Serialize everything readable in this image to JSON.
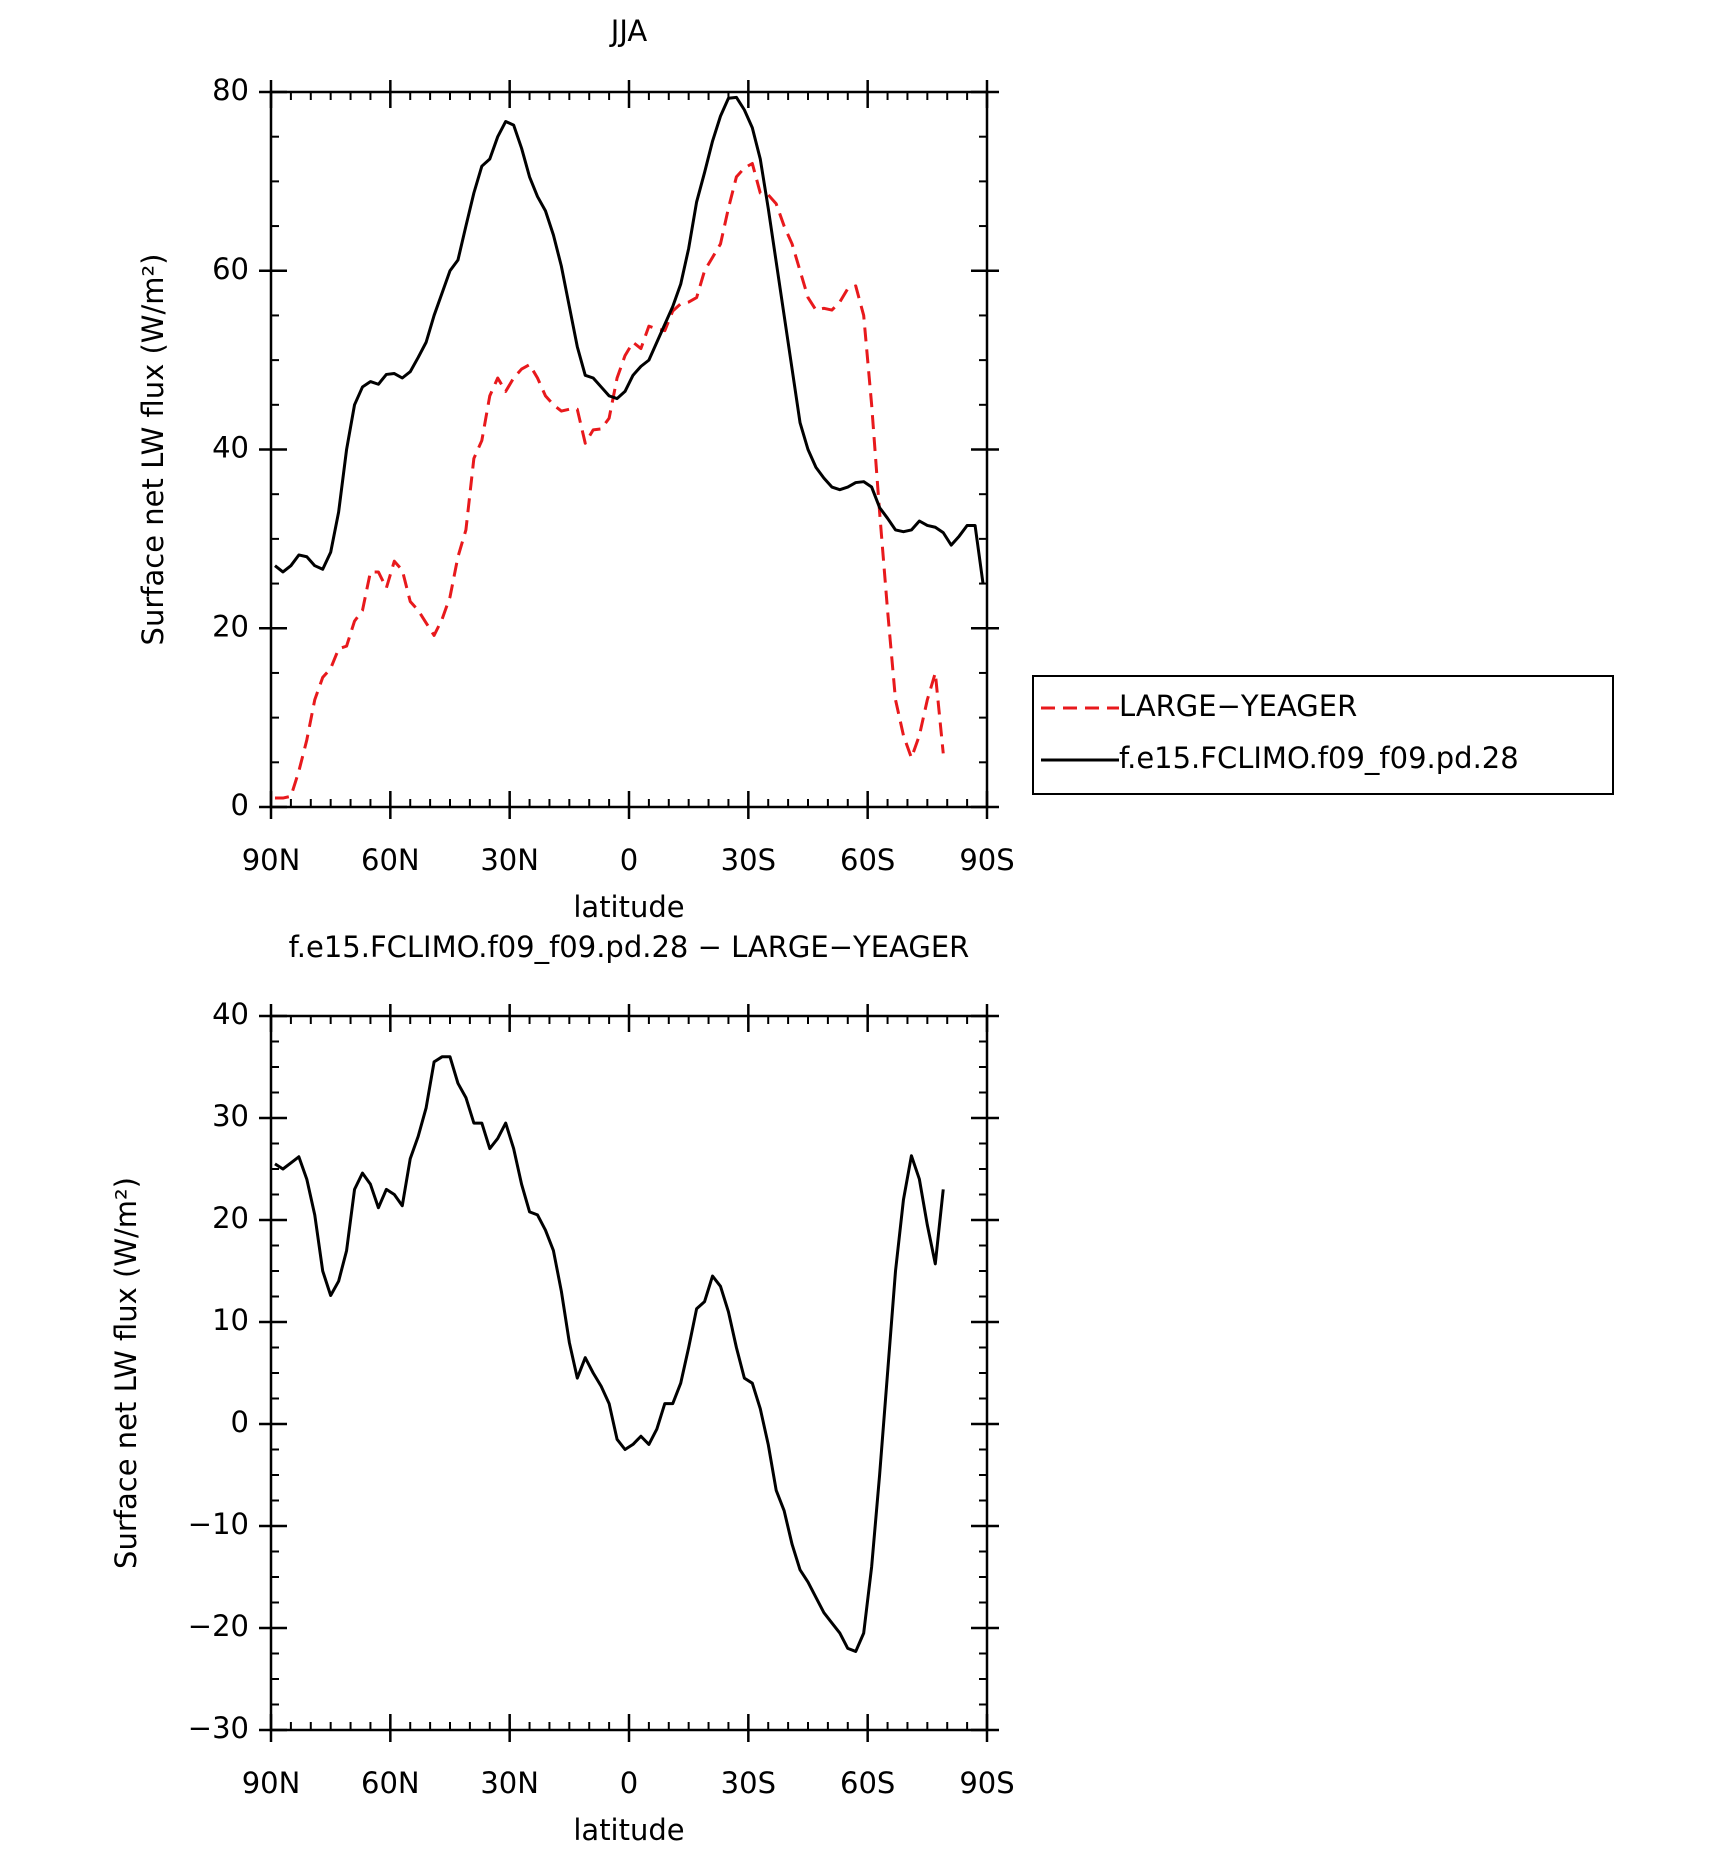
{
  "chart_data": [
    {
      "type": "line",
      "title": "JJA",
      "xlabel": "latitude",
      "ylabel": "Surface net LW flux (W/m²)",
      "x": [
        89,
        87,
        85,
        83,
        81,
        79,
        77,
        75,
        73,
        71,
        69,
        67,
        65,
        63,
        61,
        59,
        57,
        55,
        53,
        51,
        49,
        47,
        45,
        43,
        41,
        39,
        37,
        35,
        33,
        31,
        29,
        27,
        25,
        23,
        21,
        19,
        17,
        15,
        13,
        11,
        9,
        7,
        5,
        3,
        1,
        -1,
        -3,
        -5,
        -7,
        -9,
        -11,
        -13,
        -15,
        -17,
        -19,
        -21,
        -23,
        -25,
        -27,
        -29,
        -31,
        -33,
        -35,
        -37,
        -39,
        -41,
        -43,
        -45,
        -47,
        -49,
        -51,
        -53,
        -55,
        -57,
        -59,
        -61,
        -63,
        -65,
        -67,
        -69,
        -71,
        -73,
        -75,
        -77,
        -79,
        -81,
        -83,
        -85,
        -87,
        -89
      ],
      "xlim": [
        90,
        -90
      ],
      "xticks": [
        {
          "value": 90,
          "label": "90N"
        },
        {
          "value": 60,
          "label": "60N"
        },
        {
          "value": 30,
          "label": "30N"
        },
        0,
        {
          "value": -30,
          "label": "30S"
        },
        {
          "value": -60,
          "label": "60S"
        },
        {
          "value": -90,
          "label": "90S"
        }
      ],
      "ylim": [
        0,
        80
      ],
      "yticks": [
        0,
        20,
        40,
        60,
        80
      ],
      "series": [
        {
          "name": "LARGE−YEAGER",
          "color": "#e8191c",
          "linestyle": "dashed",
          "values": [
            1,
            1,
            1.2,
            4,
            7.5,
            12,
            14.5,
            15.5,
            17.7,
            18,
            20.8,
            22,
            26.3,
            26.3,
            24.5,
            27.5,
            26.5,
            23,
            22,
            20.6,
            19.2,
            21,
            23.5,
            28,
            31,
            39,
            41,
            46,
            48,
            46.5,
            48,
            49,
            49.5,
            48,
            46,
            45,
            44.3,
            44.5,
            44.5,
            40.7,
            42.2,
            42.3,
            43.5,
            48,
            50.5,
            52,
            51.3,
            53.8,
            53.5,
            53.3,
            55.5,
            56.3,
            56.5,
            57,
            60,
            61.5,
            63,
            67,
            70.5,
            71.5,
            72,
            68.7,
            68.5,
            67.5,
            65,
            63,
            60,
            57,
            55.6,
            55.8,
            55.6,
            56.5,
            58,
            58.3,
            55,
            45,
            33,
            22,
            12,
            8,
            5.5,
            8,
            12,
            15,
            6,
            null,
            null,
            null,
            null,
            null
          ]
        },
        {
          "name": "f.e15.FCLIMO.f09_f09.pd.28",
          "color": "#000000",
          "linestyle": "solid",
          "values": [
            27,
            26.3,
            27,
            28.2,
            28,
            27,
            26.6,
            28.5,
            33,
            40,
            45,
            47,
            47.6,
            47.3,
            48.4,
            48.5,
            48,
            48.7,
            50.3,
            52,
            55,
            57.5,
            60,
            61.2,
            65,
            68.7,
            71.7,
            72.5,
            75,
            76.7,
            76.3,
            73.7,
            70.5,
            68.3,
            66.7,
            64,
            60.5,
            56,
            51.5,
            48.3,
            48,
            47,
            46,
            45.7,
            46.5,
            48.3,
            49.3,
            50,
            52,
            54,
            56,
            58.5,
            62.5,
            67.7,
            71,
            74.5,
            77.3,
            79.3,
            79.4,
            78,
            76,
            72.5,
            67,
            61,
            55,
            49,
            43,
            40,
            38,
            36.8,
            35.8,
            35.5,
            35.8,
            36.3,
            36.4,
            35.8,
            33.5,
            32.3,
            31,
            30.8,
            31,
            32,
            31.5,
            31.3,
            30.7,
            29.3,
            30.3,
            31.5,
            31.5,
            25
          ]
        }
      ],
      "legend": "right"
    },
    {
      "type": "line",
      "title": "f.e15.FCLIMO.f09_f09.pd.28 − LARGE−YEAGER",
      "xlabel": "latitude",
      "ylabel": "Surface net LW flux (W/m²)",
      "x": [
        89,
        87,
        85,
        83,
        81,
        79,
        77,
        75,
        73,
        71,
        69,
        67,
        65,
        63,
        61,
        59,
        57,
        55,
        53,
        51,
        49,
        47,
        45,
        43,
        41,
        39,
        37,
        35,
        33,
        31,
        29,
        27,
        25,
        23,
        21,
        19,
        17,
        15,
        13,
        11,
        9,
        7,
        5,
        3,
        1,
        -1,
        -3,
        -5,
        -7,
        -9,
        -11,
        -13,
        -15,
        -17,
        -19,
        -21,
        -23,
        -25,
        -27,
        -29,
        -31,
        -33,
        -35,
        -37,
        -39,
        -41,
        -43,
        -45,
        -47,
        -49,
        -51,
        -53,
        -55,
        -57,
        -59,
        -61,
        -63,
        -65,
        -67,
        -69,
        -71,
        -73,
        -75,
        -77,
        -79,
        -81,
        -83,
        -85,
        -87,
        -89
      ],
      "xlim": [
        90,
        -90
      ],
      "xticks": [
        {
          "value": 90,
          "label": "90N"
        },
        {
          "value": 60,
          "label": "60N"
        },
        {
          "value": 30,
          "label": "30N"
        },
        0,
        {
          "value": -30,
          "label": "30S"
        },
        {
          "value": -60,
          "label": "60S"
        },
        {
          "value": -90,
          "label": "90S"
        }
      ],
      "ylim": [
        -30,
        40
      ],
      "yticks": [
        {
          "value": -30,
          "label": "−30"
        },
        {
          "value": -20,
          "label": "−20"
        },
        {
          "value": -10,
          "label": "−10"
        },
        0,
        10,
        20,
        30,
        40
      ],
      "series": [
        {
          "color": "#000000",
          "linestyle": "solid",
          "values": [
            25.5,
            25,
            25.6,
            26.2,
            24,
            20.5,
            15,
            12.6,
            14,
            17,
            23,
            24.6,
            23.5,
            21.2,
            23,
            22.5,
            21.4,
            26,
            28.2,
            31,
            35.5,
            36,
            36,
            33.4,
            32,
            29.5,
            29.5,
            27,
            28,
            29.5,
            27,
            23.5,
            20.8,
            20.5,
            19,
            17,
            13,
            8,
            4.5,
            6.5,
            5,
            3.7,
            2,
            -1.5,
            -2.5,
            -2,
            -1.2,
            -2,
            -0.5,
            2,
            2,
            4,
            7.5,
            11.3,
            12,
            14.5,
            13.5,
            11,
            7.5,
            4.5,
            4,
            1.5,
            -2,
            -6.5,
            -8.5,
            -11.8,
            -14.3,
            -15.5,
            -17,
            -18.5,
            -19.5,
            -20.5,
            -22,
            -22.3,
            -20.5,
            -14,
            -5,
            5,
            15,
            22,
            26.3,
            24,
            19.5,
            15.7,
            23,
            null,
            null,
            null,
            null,
            null
          ]
        }
      ]
    }
  ]
}
